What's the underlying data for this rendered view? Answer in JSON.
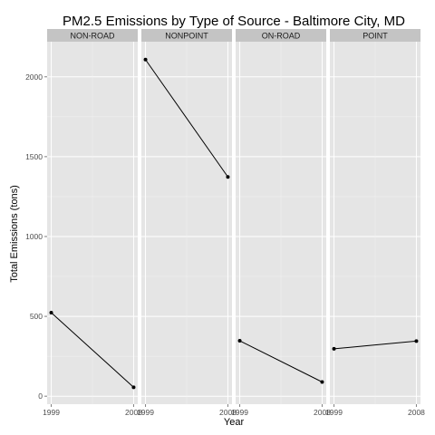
{
  "chart_data": {
    "type": "line",
    "title": "PM2.5 Emissions by Type of Source - Baltimore City, MD",
    "xlabel": "Year",
    "ylabel": "Total Emissions (tons)",
    "x": [
      1999,
      2008
    ],
    "x_tick_labels": [
      "1999",
      "2008"
    ],
    "ylim": [
      -50,
      2220
    ],
    "y_ticks": [
      0,
      500,
      1000,
      1500,
      2000
    ],
    "y_tick_labels": [
      "0",
      "500",
      "1000",
      "1500",
      "2000"
    ],
    "grid": true,
    "facets": [
      {
        "label": "NON-ROAD",
        "values": [
          523,
          56
        ]
      },
      {
        "label": "NONPOINT",
        "values": [
          2108,
          1373
        ]
      },
      {
        "label": "ON-ROAD",
        "values": [
          347,
          89
        ]
      },
      {
        "label": "POINT",
        "values": [
          297,
          345
        ]
      }
    ]
  },
  "colors": {
    "panel_background": "#e5e5e5",
    "strip_background": "#c4c4c4",
    "grid_major": "#ffffff",
    "line": "#000000"
  }
}
